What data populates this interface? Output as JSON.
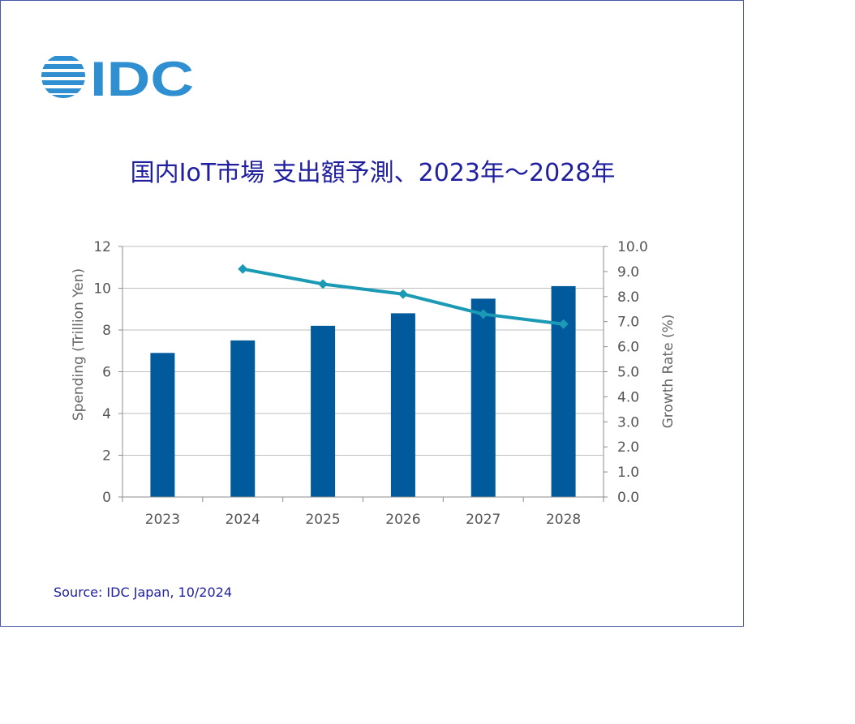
{
  "brand": {
    "logo_text": "IDC",
    "logo_color": "#2f8fd1"
  },
  "title": "国内IoT市場 支出額予測、2023年～2028年",
  "source": "Source: IDC Japan, 10/2024",
  "colors": {
    "bar": "#005a9c",
    "line": "#1a9ab5",
    "grid": "#bfbfbf",
    "title": "#1f1fa0"
  },
  "chart_data": {
    "type": "bar",
    "title": "国内IoT市場 支出額予測、2023年～2028年",
    "categories": [
      "2023",
      "2024",
      "2025",
      "2026",
      "2027",
      "2028"
    ],
    "ylabel": "Spending (Trillion Yen)",
    "y2label": "Growth Rate (%)",
    "ylim": [
      0,
      12
    ],
    "y2lim": [
      0,
      10
    ],
    "yticks": [
      "0",
      "2",
      "4",
      "6",
      "8",
      "10",
      "12"
    ],
    "y2ticks": [
      "0.0",
      "1.0",
      "2.0",
      "3.0",
      "4.0",
      "5.0",
      "6.0",
      "7.0",
      "8.0",
      "9.0",
      "10.0"
    ],
    "grid": true,
    "series": [
      {
        "type": "bar",
        "axis": "left",
        "values": [
          6.9,
          7.5,
          8.2,
          8.8,
          9.5,
          10.1
        ]
      },
      {
        "type": "line",
        "axis": "right",
        "values": [
          null,
          9.1,
          8.5,
          8.1,
          7.3,
          6.9
        ]
      }
    ]
  }
}
